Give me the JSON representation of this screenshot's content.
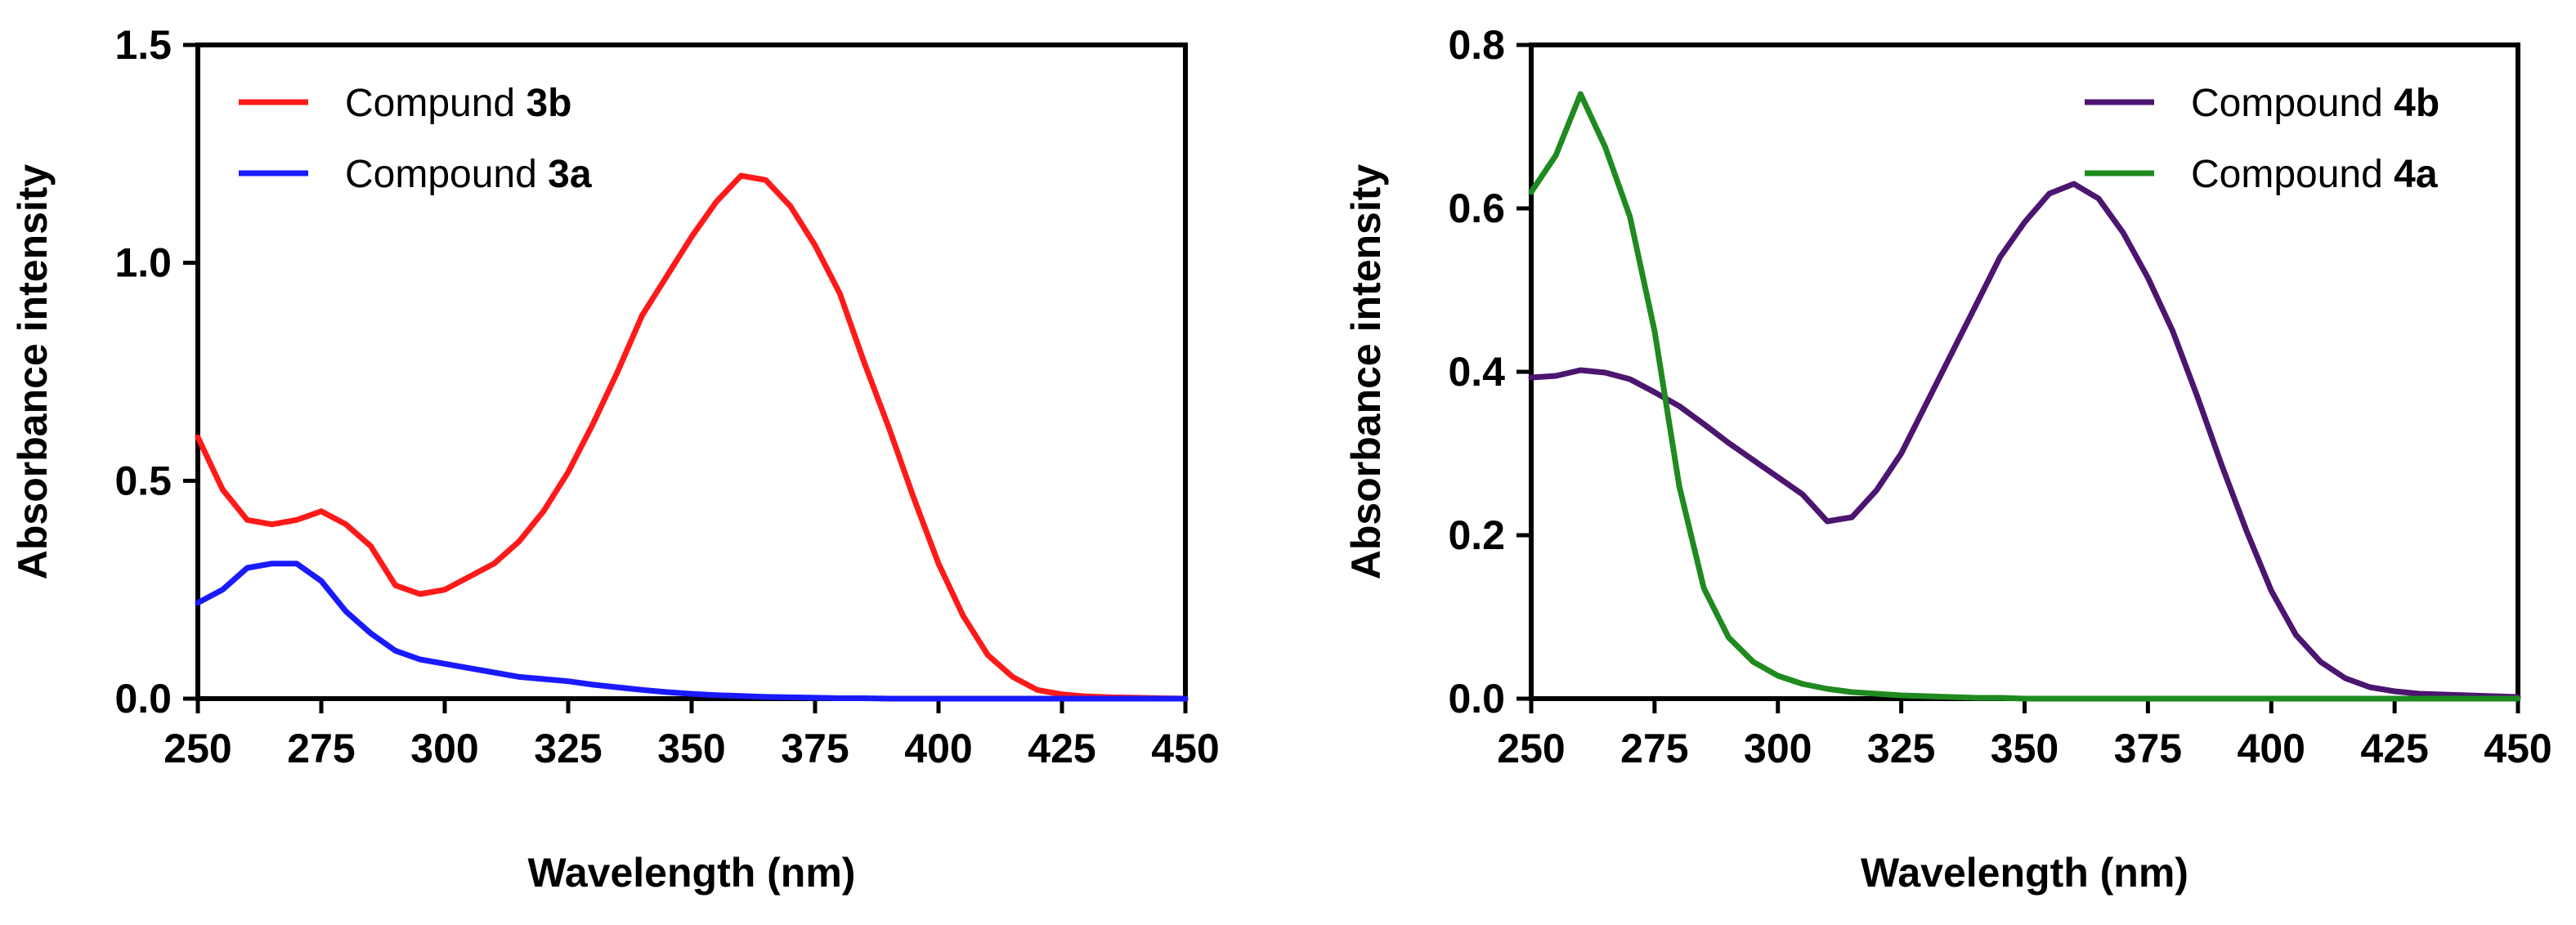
{
  "chart_data": [
    {
      "type": "line",
      "xlabel": "Wavelength (nm)",
      "ylabel": "Absorbance intensity",
      "xlim": [
        250,
        450
      ],
      "ylim": [
        0,
        1.5
      ],
      "xticks": [
        250,
        275,
        300,
        325,
        350,
        375,
        400,
        425,
        450
      ],
      "xtick_labels": [
        "250",
        "275",
        "300",
        "325",
        "350",
        "375",
        "400",
        "425",
        "450"
      ],
      "yticks": [
        0,
        0.5,
        1.0,
        1.5
      ],
      "ytick_labels": [
        "0.0",
        "0.5",
        "1.0",
        "1.5"
      ],
      "legend_position": "top-left",
      "series": [
        {
          "name": "Compund 3b",
          "label_prefix": "Compund ",
          "label_bold": "3b",
          "color": "#ff1a1a",
          "x": [
            250,
            255,
            260,
            265,
            270,
            275,
            280,
            285,
            290,
            295,
            300,
            305,
            310,
            315,
            320,
            325,
            330,
            335,
            340,
            345,
            350,
            355,
            360,
            365,
            370,
            375,
            380,
            385,
            390,
            395,
            400,
            405,
            410,
            415,
            420,
            425,
            430,
            435,
            440,
            445,
            450
          ],
          "y": [
            0.6,
            0.48,
            0.41,
            0.4,
            0.41,
            0.43,
            0.4,
            0.35,
            0.26,
            0.24,
            0.25,
            0.28,
            0.31,
            0.36,
            0.43,
            0.52,
            0.63,
            0.75,
            0.88,
            0.97,
            1.06,
            1.14,
            1.2,
            1.19,
            1.13,
            1.04,
            0.93,
            0.77,
            0.62,
            0.46,
            0.31,
            0.19,
            0.1,
            0.05,
            0.02,
            0.01,
            0.005,
            0.003,
            0.002,
            0.001,
            0.0
          ]
        },
        {
          "name": "Compound 3a",
          "label_prefix": "Compound ",
          "label_bold": "3a",
          "color": "#1a1aff",
          "x": [
            250,
            255,
            260,
            265,
            270,
            275,
            280,
            285,
            290,
            295,
            300,
            305,
            310,
            315,
            320,
            325,
            330,
            335,
            340,
            345,
            350,
            355,
            360,
            365,
            370,
            375,
            380,
            385,
            390,
            395,
            400,
            405,
            410,
            415,
            420,
            425,
            430,
            435,
            440,
            445,
            450
          ],
          "y": [
            0.22,
            0.25,
            0.3,
            0.31,
            0.31,
            0.27,
            0.2,
            0.15,
            0.11,
            0.09,
            0.08,
            0.07,
            0.06,
            0.05,
            0.045,
            0.04,
            0.032,
            0.026,
            0.02,
            0.015,
            0.011,
            0.008,
            0.006,
            0.004,
            0.003,
            0.002,
            0.001,
            0.001,
            0.0,
            0.0,
            0.0,
            0.0,
            0.0,
            0.0,
            0.0,
            0.0,
            0.0,
            0.0,
            0.0,
            0.0,
            0.0
          ]
        }
      ]
    },
    {
      "type": "line",
      "xlabel": "Wavelength (nm)",
      "ylabel": "Absorbance intensity",
      "xlim": [
        250,
        450
      ],
      "ylim": [
        0,
        0.8
      ],
      "xticks": [
        250,
        275,
        300,
        325,
        350,
        375,
        400,
        425,
        450
      ],
      "xtick_labels": [
        "250",
        "275",
        "300",
        "325",
        "350",
        "375",
        "400",
        "425",
        "450"
      ],
      "yticks": [
        0,
        0.2,
        0.4,
        0.6,
        0.8
      ],
      "ytick_labels": [
        "0.0",
        "0.2",
        "0.4",
        "0.6",
        "0.8"
      ],
      "legend_position": "top-right",
      "series": [
        {
          "name": "Compound 4b",
          "label_prefix": "Compound ",
          "label_bold": "4b",
          "color": "#4b1570",
          "x": [
            250,
            255,
            260,
            265,
            270,
            275,
            280,
            285,
            290,
            295,
            300,
            305,
            310,
            315,
            320,
            325,
            330,
            335,
            340,
            345,
            350,
            355,
            360,
            365,
            370,
            375,
            380,
            385,
            390,
            395,
            400,
            405,
            410,
            415,
            420,
            425,
            430,
            435,
            440,
            445,
            450
          ],
          "y": [
            0.393,
            0.395,
            0.402,
            0.399,
            0.391,
            0.375,
            0.358,
            0.336,
            0.313,
            0.292,
            0.271,
            0.25,
            0.217,
            0.222,
            0.255,
            0.3,
            0.36,
            0.42,
            0.48,
            0.54,
            0.583,
            0.618,
            0.63,
            0.612,
            0.57,
            0.515,
            0.45,
            0.37,
            0.285,
            0.205,
            0.132,
            0.078,
            0.045,
            0.025,
            0.014,
            0.009,
            0.006,
            0.005,
            0.004,
            0.003,
            0.002
          ]
        },
        {
          "name": "Compound 4a",
          "label_prefix": "Compound ",
          "label_bold": "4a",
          "color": "#1f8a1f",
          "x": [
            250,
            255,
            260,
            265,
            270,
            275,
            280,
            285,
            290,
            295,
            300,
            305,
            310,
            315,
            320,
            325,
            330,
            335,
            340,
            345,
            350,
            355,
            360,
            365,
            370,
            375,
            380,
            385,
            390,
            395,
            400,
            405,
            410,
            415,
            420,
            425,
            430,
            435,
            440,
            445,
            450
          ],
          "y": [
            0.62,
            0.665,
            0.74,
            0.675,
            0.59,
            0.45,
            0.26,
            0.135,
            0.075,
            0.045,
            0.028,
            0.018,
            0.012,
            0.008,
            0.006,
            0.004,
            0.003,
            0.002,
            0.001,
            0.001,
            0.0,
            0.0,
            0.0,
            0.0,
            0.0,
            0.0,
            0.0,
            0.0,
            0.0,
            0.0,
            0.0,
            0.0,
            0.0,
            0.0,
            0.0,
            0.0,
            0.0,
            0.0,
            0.0,
            0.0,
            0.0
          ]
        }
      ]
    }
  ]
}
